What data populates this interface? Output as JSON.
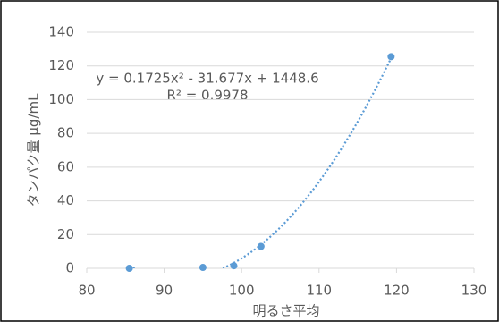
{
  "chart_data": {
    "type": "scatter",
    "x_label": "明るさ平均",
    "y_label": "タンパク量 μg/mL",
    "series": [
      {
        "color": "#5b9bd5",
        "x": [
          85.5,
          95,
          99,
          102.5,
          119.3
        ],
        "values": [
          0,
          0.5,
          1.5,
          13,
          125.5
        ]
      }
    ],
    "trendline": {
      "coefficients": [
        0.1725,
        -31.677,
        1448.6
      ],
      "equation": "y = 0.1725x² - 31.677x + 1448.6",
      "r2_label": "R² = 0.9978"
    },
    "xlim": [
      80,
      130
    ],
    "xticks": [
      80,
      90,
      100,
      110,
      120,
      130
    ],
    "ylim": [
      0,
      140
    ],
    "yticks": [
      0,
      20,
      40,
      60,
      80,
      100,
      120,
      140
    ],
    "grid": true
  }
}
